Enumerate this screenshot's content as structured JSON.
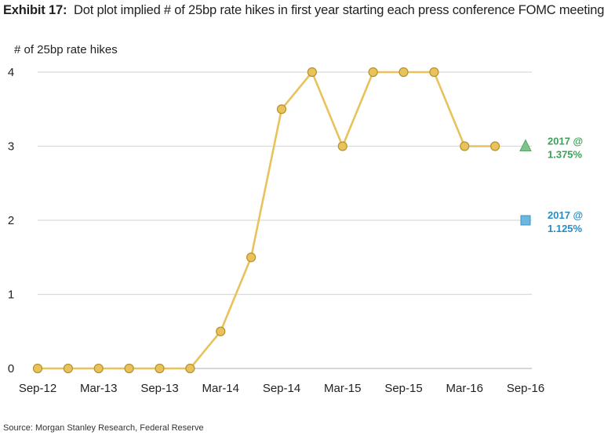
{
  "header": {
    "exhibit": "Exhibit 17:",
    "title": "Dot plot implied # of 25bp rate hikes in first year starting each press conference FOMC meeting"
  },
  "footer": {
    "source": "Source: Morgan Stanley Research, Federal Reserve"
  },
  "chart_data": {
    "type": "line",
    "ylabel": "# of 25bp rate hikes",
    "ylim": [
      0,
      4
    ],
    "yticks": [
      0,
      1,
      2,
      3,
      4
    ],
    "xticks": [
      "Sep-12",
      "Mar-13",
      "Sep-13",
      "Mar-14",
      "Sep-14",
      "Mar-15",
      "Sep-15",
      "Mar-16",
      "Sep-16"
    ],
    "x": [
      "Sep-12",
      "Dec-12",
      "Mar-13",
      "Jun-13",
      "Sep-13",
      "Dec-13",
      "Mar-14",
      "Jun-14",
      "Sep-14",
      "Dec-14",
      "Mar-15",
      "Jun-15",
      "Sep-15",
      "Dec-15",
      "Mar-16",
      "Jun-16"
    ],
    "values": [
      0,
      0,
      0,
      0,
      0,
      0,
      0.5,
      1.5,
      3.5,
      4,
      3,
      4,
      4,
      4,
      3,
      3
    ],
    "line_color": "#E8C25A",
    "marker_fill": "#E8C25A",
    "marker_stroke": "#B8902E",
    "grid": true,
    "markers": [
      {
        "x": "Sep-16",
        "y": 3,
        "shape": "triangle",
        "color": "#7DC48A",
        "label_line1": "2017 @",
        "label_line2": "1.375%",
        "label_color": "#3FA05A"
      },
      {
        "x": "Sep-16",
        "y": 2,
        "shape": "square",
        "color": "#6BB7E0",
        "label_line1": "2017 @",
        "label_line2": "1.125%",
        "label_color": "#2A8CC4"
      }
    ]
  }
}
